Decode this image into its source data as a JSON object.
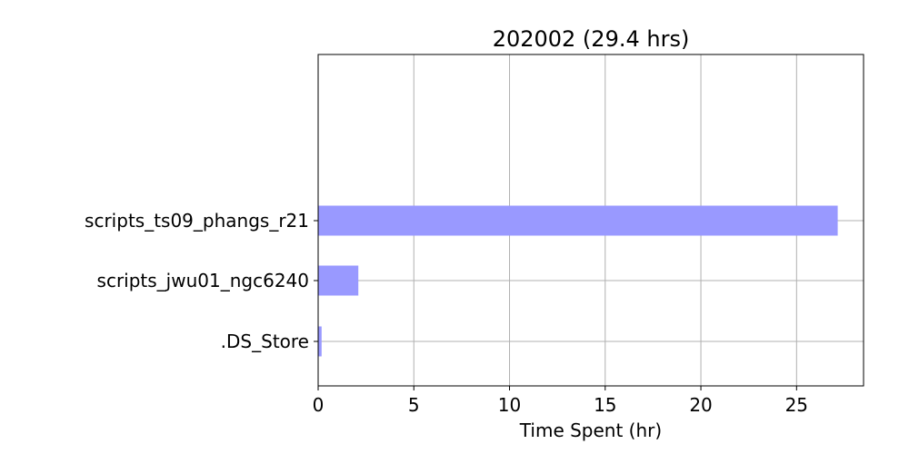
{
  "chart_data": {
    "type": "bar",
    "orientation": "horizontal",
    "title": "202002 (29.4 hrs)",
    "xlabel": "Time Spent (hr)",
    "ylabel": "",
    "categories": [
      ".DS_Store",
      "scripts_jwu01_ngc6240",
      "scripts_ts09_phangs_r21"
    ],
    "values": [
      0.18,
      2.1,
      27.15
    ],
    "xlim": [
      0,
      28.5
    ],
    "xticks": [
      0,
      5,
      10,
      15,
      20,
      25
    ],
    "grid": true,
    "bar_color": "#9999ff",
    "grid_color": "#b0b0b0"
  }
}
